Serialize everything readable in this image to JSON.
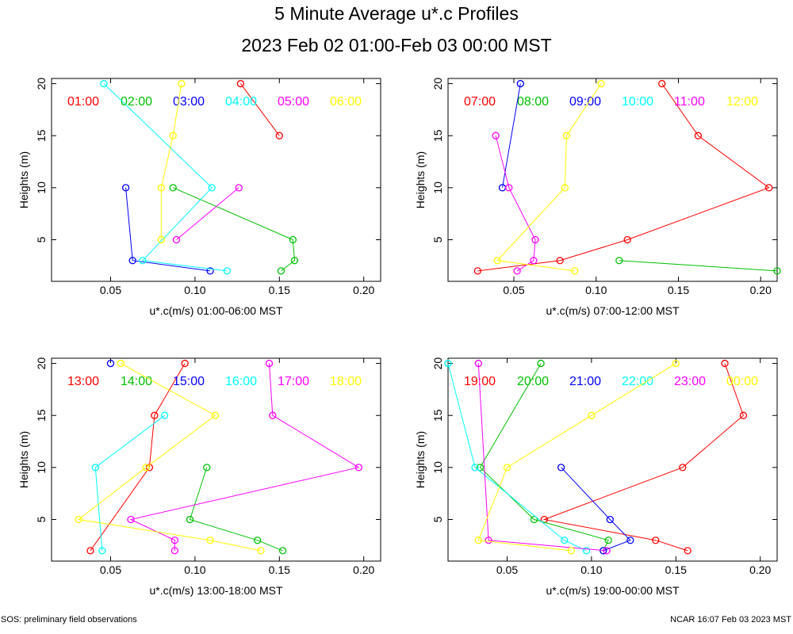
{
  "title": "5 Minute Average u*.c Profiles",
  "subtitle": "2023 Feb 02 01:00-Feb 03 00:00 MST",
  "footer_left": "SOS: preliminary field observations",
  "footer_right": "NCAR 16:07 Feb 03 2023 MST",
  "colors": [
    "#ff0000",
    "#00c000",
    "#0000ff",
    "#00ffff",
    "#ff00ff",
    "#ffff00"
  ],
  "chart_data": [
    {
      "type": "line",
      "xlabel": "u*.c(m/s) 01:00-06:00 MST",
      "ylabel": "Heights (m)",
      "xlim": [
        0.015,
        0.21
      ],
      "ylim": [
        1,
        20.5
      ],
      "xticks": [
        "0.05",
        "0.10",
        "0.15",
        "0.20"
      ],
      "yticks": [
        "5",
        "10",
        "15",
        "20"
      ],
      "legend_position": "top",
      "series": [
        {
          "name": "01:00",
          "points": [
            [
              0.15,
              15
            ],
            [
              0.127,
              20
            ]
          ]
        },
        {
          "name": "02:00",
          "points": [
            [
              0.151,
              2
            ],
            [
              0.159,
              3
            ],
            [
              0.158,
              5
            ],
            [
              0.087,
              10
            ]
          ]
        },
        {
          "name": "03:00",
          "points": [
            [
              0.109,
              2
            ],
            [
              0.063,
              3
            ],
            [
              0.059,
              10
            ]
          ]
        },
        {
          "name": "04:00",
          "points": [
            [
              0.119,
              2
            ],
            [
              0.069,
              3
            ],
            [
              0.11,
              10
            ],
            [
              0.046,
              20
            ]
          ]
        },
        {
          "name": "05:00",
          "points": [
            [
              0.089,
              5
            ],
            [
              0.126,
              10
            ]
          ]
        },
        {
          "name": "06:00",
          "points": [
            [
              0.08,
              5
            ],
            [
              0.08,
              10
            ],
            [
              0.087,
              15
            ],
            [
              0.092,
              20
            ]
          ]
        }
      ]
    },
    {
      "type": "line",
      "xlabel": "u*.c(m/s) 07:00-12:00 MST",
      "ylabel": "Heights (m)",
      "xlim": [
        0.01,
        0.21
      ],
      "ylim": [
        1,
        20.5
      ],
      "xticks": [
        "0.05",
        "0.10",
        "0.15",
        "0.20"
      ],
      "yticks": [
        "5",
        "10",
        "15",
        "20"
      ],
      "legend_position": "top",
      "series": [
        {
          "name": "07:00",
          "points": [
            [
              0.028,
              2
            ],
            [
              0.078,
              3
            ],
            [
              0.119,
              5
            ],
            [
              0.205,
              10
            ],
            [
              0.162,
              15
            ],
            [
              0.14,
              20
            ]
          ]
        },
        {
          "name": "08:00",
          "points": [
            [
              0.21,
              2
            ],
            [
              0.114,
              3
            ]
          ]
        },
        {
          "name": "09:00",
          "points": [
            [
              0.043,
              10
            ],
            [
              0.054,
              20
            ]
          ]
        },
        {
          "name": "10:00",
          "points": []
        },
        {
          "name": "11:00",
          "points": [
            [
              0.052,
              2
            ],
            [
              0.062,
              3
            ],
            [
              0.063,
              5
            ],
            [
              0.047,
              10
            ],
            [
              0.039,
              15
            ]
          ]
        },
        {
          "name": "12:00",
          "points": [
            [
              0.087,
              2
            ],
            [
              0.04,
              3
            ],
            [
              0.081,
              10
            ],
            [
              0.082,
              15
            ],
            [
              0.103,
              20
            ]
          ]
        }
      ]
    },
    {
      "type": "line",
      "xlabel": "u*.c(m/s) 13:00-18:00 MST",
      "ylabel": "Heights (m)",
      "xlim": [
        0.015,
        0.21
      ],
      "ylim": [
        1,
        20.5
      ],
      "xticks": [
        "0.05",
        "0.10",
        "0.15",
        "0.20"
      ],
      "yticks": [
        "5",
        "10",
        "15",
        "20"
      ],
      "legend_position": "top",
      "series": [
        {
          "name": "13:00",
          "points": [
            [
              0.038,
              2
            ],
            [
              0.073,
              10
            ],
            [
              0.076,
              15
            ],
            [
              0.094,
              20
            ]
          ]
        },
        {
          "name": "14:00",
          "points": [
            [
              0.152,
              2
            ],
            [
              0.137,
              3
            ],
            [
              0.097,
              5
            ],
            [
              0.107,
              10
            ]
          ]
        },
        {
          "name": "15:00",
          "points": [
            [
              0.05,
              20
            ]
          ]
        },
        {
          "name": "16:00",
          "points": [
            [
              0.045,
              2
            ],
            [
              0.041,
              10
            ],
            [
              0.082,
              15
            ]
          ]
        },
        {
          "name": "17:00",
          "points": [
            [
              0.088,
              2
            ],
            [
              0.088,
              3
            ],
            [
              0.062,
              5
            ],
            [
              0.197,
              10
            ],
            [
              0.146,
              15
            ],
            [
              0.144,
              20
            ]
          ]
        },
        {
          "name": "18:00",
          "points": [
            [
              0.139,
              2
            ],
            [
              0.109,
              3
            ],
            [
              0.031,
              5
            ],
            [
              0.071,
              10
            ],
            [
              0.112,
              15
            ],
            [
              0.056,
              20
            ]
          ]
        }
      ]
    },
    {
      "type": "line",
      "xlabel": "u*.c(m/s) 19:00-00:00 MST",
      "ylabel": "Heights (m)",
      "xlim": [
        0.015,
        0.21
      ],
      "ylim": [
        1,
        20.5
      ],
      "xticks": [
        "0.05",
        "0.10",
        "0.15",
        "0.20"
      ],
      "yticks": [
        "5",
        "10",
        "15",
        "20"
      ],
      "legend_position": "top",
      "series": [
        {
          "name": "19:00",
          "points": [
            [
              0.157,
              2
            ],
            [
              0.138,
              3
            ],
            [
              0.072,
              5
            ],
            [
              0.154,
              10
            ],
            [
              0.19,
              15
            ],
            [
              0.179,
              20
            ]
          ]
        },
        {
          "name": "20:00",
          "points": [
            [
              0.107,
              2
            ],
            [
              0.11,
              3
            ],
            [
              0.066,
              5
            ],
            [
              0.034,
              10
            ],
            [
              0.07,
              20
            ]
          ]
        },
        {
          "name": "21:00",
          "points": [
            [
              0.107,
              2
            ],
            [
              0.123,
              3
            ],
            [
              0.111,
              5
            ],
            [
              0.082,
              10
            ]
          ]
        },
        {
          "name": "22:00",
          "points": [
            [
              0.097,
              2
            ],
            [
              0.084,
              3
            ],
            [
              0.031,
              10
            ],
            [
              0.015,
              20
            ]
          ]
        },
        {
          "name": "23:00",
          "points": [
            [
              0.109,
              2
            ],
            [
              0.039,
              3
            ],
            [
              0.033,
              20
            ]
          ]
        },
        {
          "name": "00:00",
          "points": [
            [
              0.088,
              2
            ],
            [
              0.033,
              3
            ],
            [
              0.05,
              10
            ],
            [
              0.1,
              15
            ],
            [
              0.15,
              20
            ]
          ]
        }
      ]
    }
  ]
}
